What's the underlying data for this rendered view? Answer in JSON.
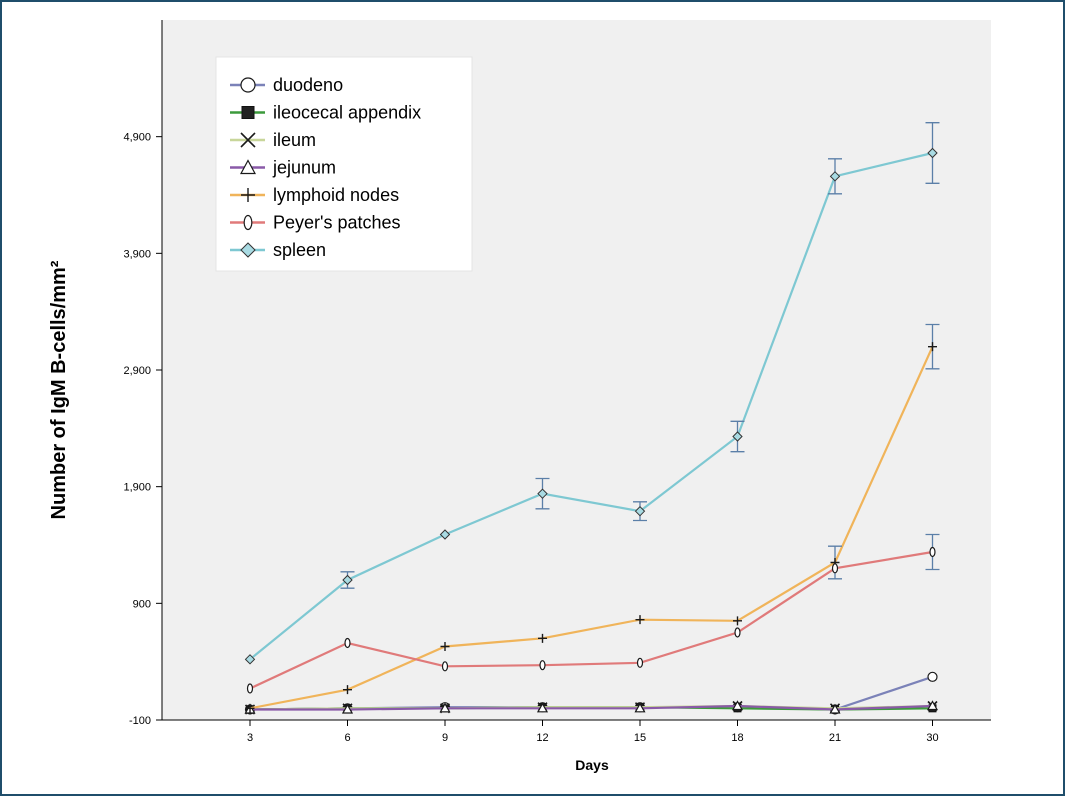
{
  "chart_data": {
    "type": "line",
    "title": "",
    "xlabel": "Days",
    "ylabel": "Number of IgM B-cells/mm²",
    "categories": [
      "3",
      "6",
      "9",
      "12",
      "15",
      "18",
      "21",
      "30"
    ],
    "yticks": [
      -100,
      900,
      1900,
      2900,
      3900,
      4900
    ],
    "ytick_labels": [
      "-100",
      "900",
      "1,900",
      "2,900",
      "3,900",
      "4,900"
    ],
    "ylim": [
      -100,
      5900
    ],
    "grid": false,
    "legend_position": "top-left",
    "series": [
      {
        "name": "duodeno",
        "color": "#7b82b8",
        "marker": "circle",
        "values": [
          -10,
          0,
          10,
          10,
          10,
          10,
          -10,
          270
        ],
        "error": [
          0,
          0,
          0,
          0,
          0,
          0,
          0,
          0
        ]
      },
      {
        "name": "ileocecal appendix",
        "color": "#3c9a3c",
        "marker": "square",
        "values": [
          -10,
          0,
          0,
          10,
          10,
          0,
          -10,
          0
        ],
        "error": [
          0,
          0,
          0,
          0,
          0,
          0,
          0,
          0
        ]
      },
      {
        "name": "ileum",
        "color": "#c8d69a",
        "marker": "x",
        "values": [
          -10,
          0,
          0,
          10,
          10,
          20,
          0,
          20
        ],
        "error": [
          0,
          0,
          0,
          0,
          0,
          0,
          0,
          0
        ]
      },
      {
        "name": "jejunum",
        "color": "#8a5aa8",
        "marker": "triangle",
        "values": [
          -10,
          -10,
          0,
          0,
          0,
          20,
          -10,
          20
        ],
        "error": [
          0,
          0,
          0,
          0,
          0,
          0,
          0,
          0
        ]
      },
      {
        "name": "lymphoid nodes",
        "color": "#f0b45a",
        "marker": "plus",
        "values": [
          0,
          160,
          530,
          600,
          760,
          750,
          1250,
          3100
        ],
        "error": [
          0,
          0,
          0,
          0,
          0,
          0,
          140,
          190
        ]
      },
      {
        "name": "Peyer's patches",
        "color": "#e07a7a",
        "marker": "ellipse",
        "values": [
          170,
          560,
          360,
          370,
          390,
          650,
          1200,
          1340
        ],
        "error": [
          0,
          0,
          0,
          0,
          0,
          0,
          0,
          150
        ]
      },
      {
        "name": "spleen",
        "color": "#7ec8d2",
        "marker": "diamond",
        "values": [
          420,
          1100,
          1490,
          1840,
          1690,
          2330,
          4560,
          4760
        ],
        "error": [
          0,
          70,
          0,
          130,
          80,
          130,
          150,
          260
        ]
      }
    ]
  }
}
